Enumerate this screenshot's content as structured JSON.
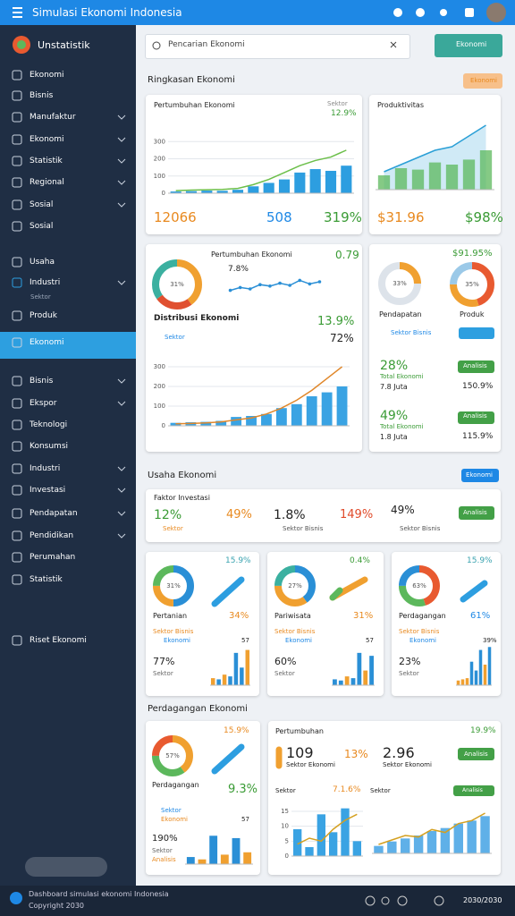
{
  "header": {
    "title": "Simulasi Ekonomi Indonesia"
  },
  "sidebar": {
    "brand": "Unstatistik",
    "items": [
      {
        "label": "Ekonomi"
      },
      {
        "label": "Bisnis"
      },
      {
        "label": "Manufaktur",
        "expandable": true
      },
      {
        "label": "Ekonomi",
        "expandable": true
      },
      {
        "label": "Statistik",
        "expandable": true
      },
      {
        "label": "Regional",
        "expandable": true
      },
      {
        "label": "Sosial",
        "expandable": true
      },
      {
        "label": "Sosial"
      },
      {
        "label": "Usaha"
      },
      {
        "label": "Industri",
        "expandable": true
      },
      {
        "label": "Sektor"
      },
      {
        "label": "Produk"
      },
      {
        "label": "Ekonomi",
        "active": true
      },
      {
        "label": "Bisnis",
        "expandable": true
      },
      {
        "label": "Ekspor",
        "expandable": true
      },
      {
        "label": "Teknologi"
      },
      {
        "label": "Konsumsi"
      },
      {
        "label": "Industri",
        "expandable": true
      },
      {
        "label": "Investasi",
        "expandable": true
      },
      {
        "label": "Pendapatan",
        "expandable": true
      },
      {
        "label": "Pendidikan",
        "expandable": true
      },
      {
        "label": "Perumahan"
      },
      {
        "label": "Statistik"
      },
      {
        "label": "Riset Ekonomi"
      }
    ]
  },
  "search": {
    "placeholder": "Pencarian Ekonomi",
    "button": "Ekonomi"
  },
  "section1": {
    "title": "Ringkasan Ekonomi",
    "badge": "Ekonomi"
  },
  "card1": {
    "title": "Pertumbuhan Ekonomi",
    "label": "Sektor",
    "change": "12.9%",
    "stats": [
      "12066",
      "508",
      "319%"
    ],
    "chart": {
      "type": "bar",
      "ylim": [
        0,
        400
      ],
      "yticks": [
        0,
        100,
        200,
        300
      ],
      "values": [
        10,
        12,
        15,
        14,
        20,
        40,
        60,
        80,
        120,
        140,
        130,
        160
      ],
      "color": "#2d9ee0",
      "line": [
        15,
        18,
        20,
        22,
        28,
        50,
        80,
        120,
        160,
        190,
        210,
        250
      ],
      "line_color": "#6cbf4a"
    }
  },
  "card2": {
    "title": "Produktivitas",
    "stats": [
      "$31.96",
      "$98%"
    ],
    "chart": {
      "type": "bar",
      "ylim": [
        0,
        100
      ],
      "values": [
        20,
        30,
        28,
        38,
        35,
        42,
        55
      ],
      "color": "#5cb85c",
      "line": [
        25,
        35,
        45,
        55,
        60,
        75,
        90
      ],
      "line_color": "#2a9fd6",
      "area": true
    }
  },
  "card3": {
    "title": "Pertumbuhan Ekonomi",
    "subvalue": "7.8%",
    "change": "0.79",
    "heading": "Distribusi Ekonomi",
    "heading_change": "13.9%",
    "share": "72%",
    "label": "Sektor",
    "donut": {
      "type": "donut",
      "values": [
        40,
        25,
        35
      ],
      "colors": [
        "#f0a030",
        "#e05030",
        "#3bb0a0"
      ],
      "center": "31%"
    },
    "line": {
      "type": "line",
      "ylim": [
        0,
        30
      ],
      "values": [
        8,
        12,
        10,
        16,
        14,
        18,
        15,
        22,
        17,
        20
      ],
      "color": "#2a8fd6"
    },
    "chart": {
      "type": "bar",
      "ylim": [
        0,
        350
      ],
      "yticks": [
        0,
        100,
        200,
        300
      ],
      "values": [
        15,
        18,
        20,
        25,
        45,
        50,
        60,
        90,
        110,
        150,
        170,
        200
      ],
      "color": "#3aa3e3",
      "line": [
        10,
        12,
        15,
        20,
        30,
        40,
        60,
        90,
        130,
        180,
        240,
        300
      ],
      "line_color": "#e0872a"
    }
  },
  "card4": {
    "change": "$91.95%",
    "labels": [
      "Pendapatan",
      "Produk"
    ],
    "tag": "Sektor Bisnis",
    "rows": [
      {
        "value": "28%",
        "label": "Total Ekonomi",
        "sub": "7.8 Juta",
        "button": "Analisis",
        "right": "150.9%"
      },
      {
        "value": "49%",
        "label": "Total Ekonomi",
        "sub": "1.8 Juta",
        "button": "Analisis",
        "right": "115.9%"
      }
    ],
    "donuts": [
      {
        "type": "donut",
        "values": [
          25,
          75
        ],
        "colors": [
          "#f0a030",
          "#dde3ea"
        ],
        "center": "33%"
      },
      {
        "type": "donut",
        "values": [
          45,
          30,
          25
        ],
        "colors": [
          "#e85a30",
          "#f0a030",
          "#9bc9e8"
        ],
        "center": "35%"
      }
    ]
  },
  "section2": {
    "title": "Usaha Ekonomi",
    "button": "Ekonomi"
  },
  "card5": {
    "title": "Faktor Investasi",
    "values": [
      "12%",
      "49%",
      "1.8%",
      "149%",
      "49%"
    ],
    "labels": [
      "Sektor",
      "Sektor Bisnis",
      "Sektor Bisnis"
    ],
    "button": "Analisis"
  },
  "cards6": [
    {
      "title": "Pertanian",
      "change": "15.9%",
      "share": "34%",
      "sub": "Sektor Bisnis",
      "tag": "Ekonomi",
      "count": "57",
      "value": "77%",
      "label": "Sektor",
      "donut": {
        "type": "donut",
        "values": [
          50,
          25,
          25
        ],
        "colors": [
          "#2a8fd6",
          "#f0a030",
          "#5cb85c"
        ],
        "center": "31%"
      },
      "bars": {
        "type": "bar",
        "ylim": [
          0,
          70
        ],
        "values": [
          12,
          10,
          18,
          15,
          55,
          30,
          60
        ],
        "colors": [
          "#f0a030",
          "#2a8fd6",
          "#f0a030",
          "#2a8fd6",
          "#2a8fd6",
          "#2a8fd6",
          "#f0a030"
        ]
      }
    },
    {
      "title": "Pariwisata",
      "change": "0.4%",
      "share": "31%",
      "sub": "Sektor Bisnis",
      "tag": "Ekonomi",
      "count": "57",
      "value": "60%",
      "label": "Sektor",
      "donut": {
        "type": "donut",
        "values": [
          40,
          35,
          25
        ],
        "colors": [
          "#2a8fd6",
          "#f0a030",
          "#3bb0a0"
        ],
        "center": "27%"
      },
      "bars": {
        "type": "bar",
        "ylim": [
          0,
          70
        ],
        "values": [
          10,
          8,
          15,
          12,
          55,
          25,
          50
        ],
        "colors": [
          "#2a8fd6",
          "#2a8fd6",
          "#f0a030",
          "#2a8fd6",
          "#2a8fd6",
          "#f0a030",
          "#2a8fd6"
        ]
      }
    },
    {
      "title": "Perdagangan",
      "change": "15.9%",
      "share": "61%",
      "sub": "Sektor Bisnis",
      "tag": "Ekonomi",
      "count": "39%",
      "value": "23%",
      "label": "Sektor",
      "donut": {
        "type": "donut",
        "values": [
          45,
          30,
          25
        ],
        "colors": [
          "#e85a30",
          "#5cb85c",
          "#2a8fd6"
        ],
        "center": "63%"
      },
      "bars": {
        "type": "bar",
        "ylim": [
          0,
          70
        ],
        "values": [
          8,
          10,
          12,
          40,
          25,
          60,
          35,
          65
        ],
        "colors": [
          "#f0a030",
          "#f0a030",
          "#f0a030",
          "#2a8fd6",
          "#2a8fd6",
          "#2a8fd6",
          "#f0a030",
          "#2a8fd6"
        ]
      }
    }
  ],
  "section3": {
    "title": "Perdagangan Ekonomi"
  },
  "card7": {
    "title": "Perdagangan",
    "change": "15.9%",
    "share": "9.3%",
    "sub": "Sektor",
    "tag": "Ekonomi",
    "count": "57",
    "value": "190%",
    "label": "Sektor",
    "label2": "Analisis",
    "donut": {
      "type": "donut",
      "values": [
        40,
        35,
        25
      ],
      "colors": [
        "#f0a030",
        "#5cb85c",
        "#e85a30"
      ],
      "center": "57%"
    },
    "bars": {
      "type": "bar",
      "ylim": [
        0,
        70
      ],
      "values": [
        15,
        10,
        60,
        20,
        55,
        25
      ],
      "colors": [
        "#2a8fd6",
        "#f0a030",
        "#2a8fd6",
        "#f0a030",
        "#2a8fd6",
        "#f0a030"
      ]
    }
  },
  "card8": {
    "title": "Pertumbuhan",
    "change": "19.9%",
    "values": [
      "109",
      "13%",
      "2.96"
    ],
    "labels": [
      "Sektor Ekonomi",
      "Sektor Ekonomi"
    ],
    "button": "Analisis",
    "left_label": "Sektor",
    "mid_value": "7.1.6%",
    "right_label": "Sektor",
    "button2": "Analisis",
    "chart1": {
      "type": "bar",
      "ylim": [
        0,
        18
      ],
      "yticks": [
        0,
        5,
        10,
        15
      ],
      "values": [
        9,
        3,
        14,
        8,
        16,
        5
      ],
      "color": "#3aa3e3",
      "line": [
        4,
        6,
        5,
        9,
        12,
        14
      ],
      "line_color": "#d4a020"
    },
    "chart2": {
      "type": "bar",
      "ylim": [
        0,
        30
      ],
      "values": [
        5,
        8,
        10,
        12,
        15,
        17,
        20,
        22,
        25
      ],
      "color": "#5fb0e8",
      "line": [
        6,
        9,
        12,
        11,
        16,
        14,
        20,
        22,
        27
      ],
      "line_color": "#d4a020"
    }
  },
  "footer": {
    "text": "Dashboard simulasi ekonomi Indonesia",
    "copyright": "Copyright 2030",
    "pages": "2030/2030"
  }
}
